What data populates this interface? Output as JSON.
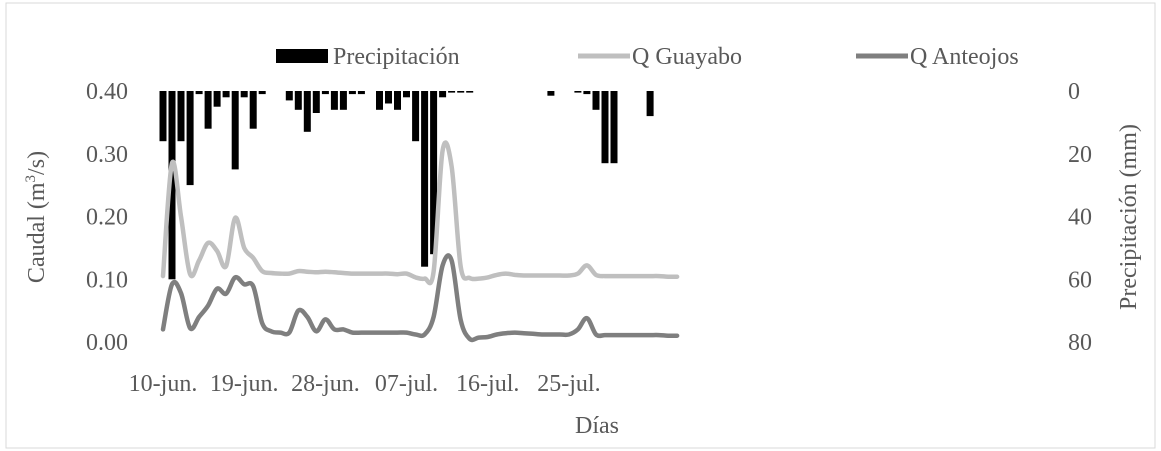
{
  "chart_data": {
    "type": "line",
    "xlabel": "Días",
    "ylabel_left": "Caudal  (m",
    "ylabel_left_sup": "3",
    "ylabel_left_end": "/s)",
    "ylabel_right": "Precipitación (mm)",
    "x_start": "2019-06-10",
    "x_ticks": [
      {
        "day": 0,
        "label": "10-jun."
      },
      {
        "day": 9,
        "label": "19-jun."
      },
      {
        "day": 18,
        "label": "28-jun."
      },
      {
        "day": 27,
        "label": "07-jul."
      },
      {
        "day": 36,
        "label": "16-jul."
      },
      {
        "day": 45,
        "label": "25-jul."
      }
    ],
    "ylim_left": [
      0,
      0.4
    ],
    "yticks_left": [
      "0.00",
      "0.10",
      "0.20",
      "0.30",
      "0.40"
    ],
    "ylim_right": [
      0,
      80
    ],
    "yticks_right": [
      "0",
      "20",
      "40",
      "60",
      "80"
    ],
    "right_axis_inverted": true,
    "legend": {
      "position": "top",
      "items": [
        {
          "label": "Precipitación",
          "color": "#000000",
          "kind": "bar"
        },
        {
          "label": "Q Guayabo",
          "color": "#bfbfbf",
          "kind": "line"
        },
        {
          "label": "Q Anteojos",
          "color": "#7f7f7f",
          "kind": "line"
        }
      ]
    },
    "precip": {
      "name": "Precipitación",
      "color": "#000000",
      "x": [
        0,
        1,
        2,
        3,
        4,
        5,
        6,
        7,
        8,
        9,
        10,
        11,
        14,
        15,
        16,
        17,
        18,
        19,
        20,
        21,
        22,
        24,
        25,
        26,
        27,
        28,
        29,
        30,
        31,
        32,
        33,
        34,
        43,
        46,
        47,
        48,
        49,
        50,
        54
      ],
      "values": [
        16,
        60,
        16,
        30,
        1,
        12,
        5,
        2,
        25,
        2,
        12,
        1,
        3,
        6,
        13,
        7,
        1,
        6,
        6,
        1,
        1,
        6,
        4,
        6,
        2,
        16,
        56,
        52,
        2,
        0.5,
        0.5,
        0.5,
        1.5,
        0.5,
        1,
        6,
        23,
        23,
        8
      ]
    },
    "series": [
      {
        "name": "Q Guayabo",
        "color": "#bfbfbf",
        "x": [
          0,
          1,
          2,
          3,
          4,
          5,
          6,
          7,
          8,
          9,
          10,
          11,
          12,
          13,
          14,
          15,
          16,
          17,
          18,
          19,
          20,
          21,
          22,
          23,
          24,
          25,
          26,
          27,
          28,
          29,
          30,
          31,
          32,
          33,
          34,
          35,
          36,
          37,
          38,
          39,
          40,
          41,
          42,
          43,
          44,
          45,
          46,
          47,
          48,
          49,
          50,
          51,
          52,
          53,
          54,
          55,
          56,
          57
        ],
        "values": [
          0.105,
          0.285,
          0.2,
          0.108,
          0.13,
          0.158,
          0.145,
          0.121,
          0.198,
          0.15,
          0.134,
          0.113,
          0.11,
          0.109,
          0.109,
          0.113,
          0.112,
          0.111,
          0.112,
          0.111,
          0.11,
          0.109,
          0.109,
          0.109,
          0.109,
          0.109,
          0.108,
          0.109,
          0.103,
          0.101,
          0.112,
          0.305,
          0.28,
          0.12,
          0.102,
          0.101,
          0.103,
          0.107,
          0.109,
          0.107,
          0.106,
          0.106,
          0.106,
          0.106,
          0.106,
          0.106,
          0.109,
          0.122,
          0.107,
          0.105,
          0.105,
          0.105,
          0.105,
          0.105,
          0.105,
          0.105,
          0.104,
          0.104
        ]
      },
      {
        "name": "Q Anteojos",
        "color": "#7f7f7f",
        "x": [
          0,
          1,
          2,
          3,
          4,
          5,
          6,
          7,
          8,
          9,
          10,
          11,
          12,
          13,
          14,
          15,
          16,
          17,
          18,
          19,
          20,
          21,
          22,
          23,
          24,
          25,
          26,
          27,
          28,
          29,
          30,
          31,
          32,
          33,
          34,
          35,
          36,
          37,
          38,
          39,
          40,
          41,
          42,
          43,
          44,
          45,
          46,
          47,
          48,
          49,
          50,
          51,
          52,
          53,
          54,
          55,
          56,
          57
        ],
        "values": [
          0.02,
          0.092,
          0.078,
          0.022,
          0.04,
          0.058,
          0.085,
          0.077,
          0.103,
          0.092,
          0.089,
          0.03,
          0.017,
          0.015,
          0.015,
          0.05,
          0.04,
          0.017,
          0.036,
          0.02,
          0.02,
          0.015,
          0.015,
          0.015,
          0.015,
          0.015,
          0.015,
          0.015,
          0.012,
          0.012,
          0.04,
          0.122,
          0.13,
          0.035,
          0.005,
          0.007,
          0.008,
          0.012,
          0.014,
          0.015,
          0.014,
          0.013,
          0.012,
          0.012,
          0.012,
          0.012,
          0.02,
          0.038,
          0.012,
          0.011,
          0.011,
          0.011,
          0.011,
          0.011,
          0.011,
          0.011,
          0.01,
          0.01
        ]
      }
    ]
  }
}
